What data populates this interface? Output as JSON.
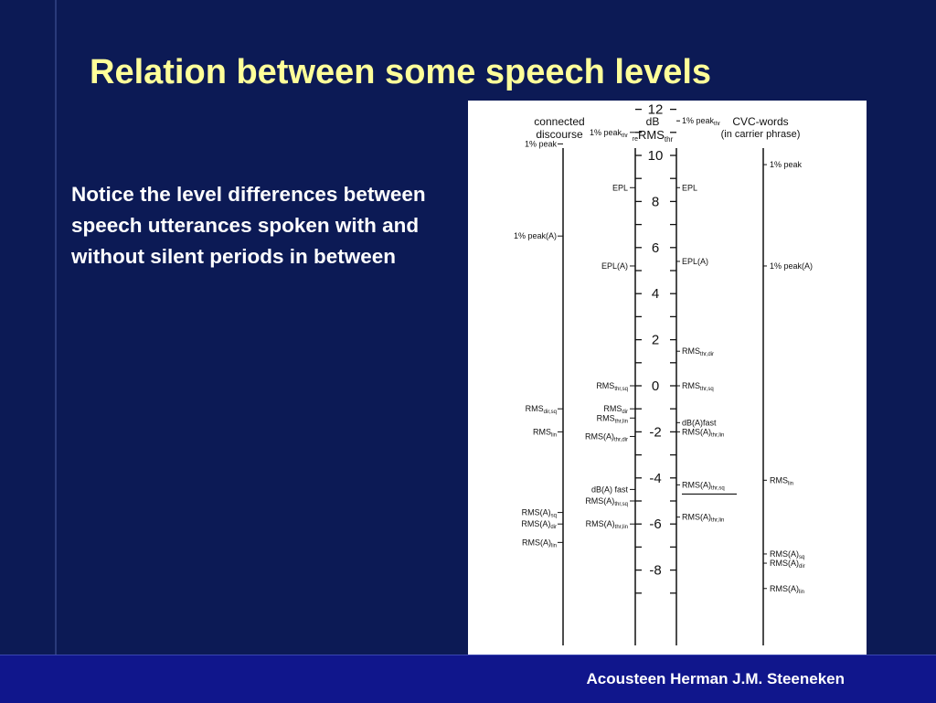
{
  "slide": {
    "title": "Relation between some speech levels",
    "body": "Notice the level differences between speech utterances spoken with and without silent periods in between",
    "footer": "Acousteen Herman J.M. Steeneken"
  },
  "figure": {
    "headers": {
      "left_line1": "connected",
      "left_line2": "discourse",
      "middle_line1": "dB",
      "middle_line2_pre": "re",
      "middle_line2_main": "RMS",
      "middle_line2_sub": "thr",
      "right_line1": "CVC-words",
      "right_line2": "(in carrier phrase)"
    },
    "scale_ticks": [
      "12",
      "10",
      "8",
      "6",
      "4",
      "2",
      "0",
      "-2",
      "-4",
      "-6",
      "-8"
    ],
    "left_outer": [
      {
        "base": "1% peak",
        "sub": "",
        "db": 10.5
      },
      {
        "base": "1% peak(A)",
        "sub": "",
        "db": 6.5
      },
      {
        "base": "RMS",
        "sub": "dir,sq",
        "db": -1.0
      },
      {
        "base": "RMS",
        "sub": "lin",
        "db": -2.0
      },
      {
        "base": "RMS(A)",
        "sub": "sq",
        "db": -5.5
      },
      {
        "base": "RMS(A)",
        "sub": "dir",
        "db": -6.0
      },
      {
        "base": "RMS(A)",
        "sub": "lin",
        "db": -6.8
      }
    ],
    "left_inner": [
      {
        "base": "1% peak",
        "sub": "thr",
        "db": 11.0
      },
      {
        "base": "EPL",
        "sub": "",
        "db": 8.6
      },
      {
        "base": "EPL(A)",
        "sub": "",
        "db": 5.2
      },
      {
        "base": "RMS",
        "sub": "thr,sq",
        "db": 0.0
      },
      {
        "base": "RMS",
        "sub": "dir",
        "db": -1.0
      },
      {
        "base": "RMS",
        "sub": "thr,lin",
        "db": -1.4
      },
      {
        "base": "RMS(A)",
        "sub": "thr,dir",
        "db": -2.2
      },
      {
        "base": "dB(A) fast",
        "sub": "",
        "db": -4.5
      },
      {
        "base": "RMS(A)",
        "sub": "thr,sq",
        "db": -5.0
      },
      {
        "base": "RMS(A)",
        "sub": "thr,lin",
        "db": -6.0
      }
    ],
    "right_inner": [
      {
        "base": "1% peak",
        "sub": "thr",
        "db": 11.5
      },
      {
        "base": "EPL",
        "sub": "",
        "db": 8.6
      },
      {
        "base": "EPL(A)",
        "sub": "",
        "db": 5.4
      },
      {
        "base": "RMS",
        "sub": "thr,dir",
        "db": 1.5
      },
      {
        "base": "RMS",
        "sub": "thr,sq",
        "db": 0.0
      },
      {
        "base": "dB(A)fast",
        "sub": "",
        "db": -1.6
      },
      {
        "base": "RMS(A)",
        "sub": "thr,lin",
        "db": -2.0
      },
      {
        "base": "RMS(A)",
        "sub": "thr,sq",
        "db": -4.3
      },
      {
        "base": "RMS(A)",
        "sub": "thr,lin",
        "db": -5.7
      }
    ],
    "right_outer": [
      {
        "base": "1% peak",
        "sub": "",
        "db": 9.6
      },
      {
        "base": "1% peak(A)",
        "sub": "",
        "db": 5.2
      },
      {
        "base": "RMS",
        "sub": "lin",
        "db": -4.1
      },
      {
        "base": "RMS(A)",
        "sub": "sq",
        "db": -7.3
      },
      {
        "base": "RMS(A)",
        "sub": "dir",
        "db": -7.7
      },
      {
        "base": "RMS(A)",
        "sub": "lin",
        "db": -8.8
      }
    ]
  }
}
